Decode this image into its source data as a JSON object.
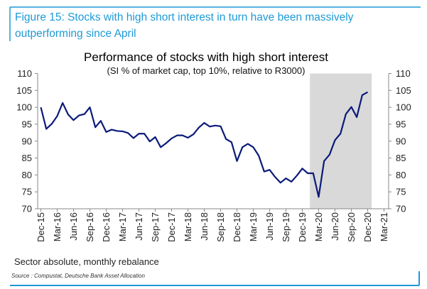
{
  "figure": {
    "caption_line1": "Figure 15: Stocks with high short interest in turn have been massively",
    "caption_line2": "outperforming since April",
    "note": "Sector absolute, monthly rebalance",
    "source": "Source : Compustat, Deutsche Bank Asset Allocation",
    "frame_color": "#1e9ad6"
  },
  "chart_data": {
    "type": "line",
    "title": "Performance of stocks with high short interest",
    "subtitle": "(SI % of market cap, top 10%, relative to R3000)",
    "xlabel": "",
    "ylabel": "",
    "ylim": [
      70,
      110
    ],
    "y_ticks": [
      "70",
      "75",
      "80",
      "85",
      "90",
      "95",
      "100",
      "105",
      "110"
    ],
    "secondary_y_ticks": [
      "70",
      "75",
      "80",
      "85",
      "90",
      "95",
      "100",
      "105",
      "110"
    ],
    "x_tick_labels": [
      "Dec-15",
      "Mar-16",
      "Jun-16",
      "Sep-16",
      "Dec-16",
      "Mar-17",
      "Jun-17",
      "Sep-17",
      "Dec-17",
      "Mar-18",
      "Jun-18",
      "Sep-18",
      "Dec-18",
      "Mar-19",
      "Jun-19",
      "Sep-19",
      "Dec-19",
      "Mar-20",
      "Jun-20",
      "Sep-20",
      "Dec-20",
      "Mar-21"
    ],
    "grid": false,
    "line_color": "#0a1a7a",
    "shaded_region": {
      "from": "Jan-20",
      "to": "Jan-21",
      "color": "#d9d9d9"
    },
    "series": [
      {
        "x": [
          "Dec-15",
          "Jan-16",
          "Feb-16",
          "Mar-16",
          "Apr-16",
          "May-16",
          "Jun-16",
          "Jul-16",
          "Aug-16",
          "Sep-16",
          "Oct-16",
          "Nov-16",
          "Dec-16",
          "Jan-17",
          "Feb-17",
          "Mar-17",
          "Apr-17",
          "May-17",
          "Jun-17",
          "Jul-17",
          "Aug-17",
          "Sep-17",
          "Oct-17",
          "Nov-17",
          "Dec-17",
          "Jan-18",
          "Feb-18",
          "Mar-18",
          "Apr-18",
          "May-18",
          "Jun-18",
          "Jul-18",
          "Aug-18",
          "Sep-18",
          "Oct-18",
          "Nov-18",
          "Dec-18",
          "Jan-19",
          "Feb-19",
          "Mar-19",
          "Apr-19",
          "May-19",
          "Jun-19",
          "Jul-19",
          "Aug-19",
          "Sep-19",
          "Oct-19",
          "Nov-19",
          "Dec-19",
          "Jan-20",
          "Feb-20",
          "Mar-20",
          "Apr-20",
          "May-20",
          "Jun-20",
          "Jul-20",
          "Aug-20",
          "Sep-20",
          "Oct-20",
          "Nov-20",
          "Dec-20"
        ],
        "values": [
          100,
          93.6,
          95.1,
          97.4,
          101.3,
          97.9,
          96.2,
          97.6,
          98.0,
          100,
          94.1,
          96,
          92.7,
          93.4,
          93,
          92.9,
          92.4,
          90.9,
          92.2,
          92.2,
          89.9,
          91.2,
          88.2,
          89.4,
          90.8,
          91.7,
          91.7,
          91,
          92,
          94,
          95.4,
          94.3,
          94.6,
          94.4,
          90.6,
          89.7,
          84.1,
          88.2,
          89.2,
          88.2,
          85.7,
          81,
          81.5,
          79.4,
          77.7,
          79,
          78,
          79.8,
          81.9,
          80.5,
          80.5,
          73.5,
          84.1,
          86,
          90.3,
          92.2,
          98,
          100.1,
          97.1,
          103.6,
          104.5
        ]
      }
    ]
  }
}
